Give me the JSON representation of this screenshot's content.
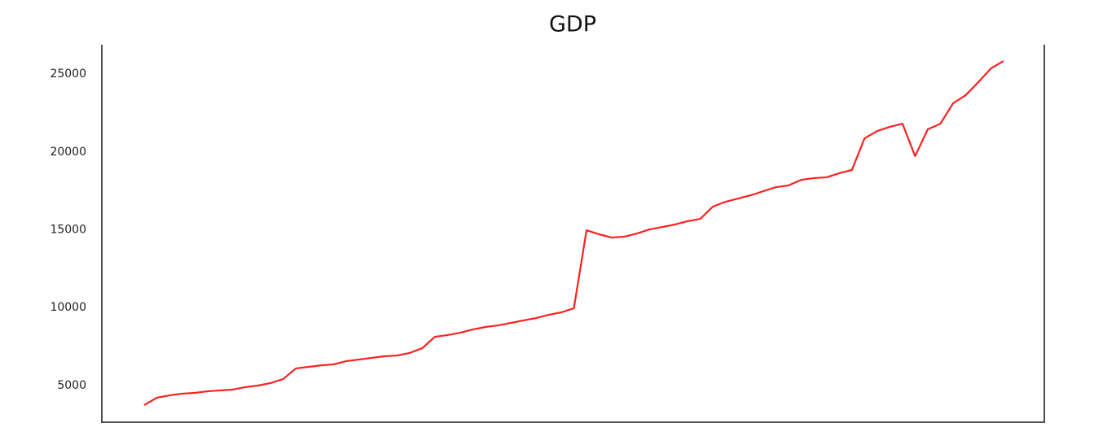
{
  "chart_data": {
    "type": "line",
    "title": "GDP",
    "color": "#ff2020",
    "values": [
      3750,
      4220,
      4370,
      4480,
      4530,
      4630,
      4690,
      4740,
      4900,
      5000,
      5160,
      5420,
      6100,
      6200,
      6300,
      6360,
      6570,
      6670,
      6780,
      6880,
      6930,
      7090,
      7400,
      8130,
      8240,
      8390,
      8600,
      8760,
      8860,
      9020,
      9180,
      9330,
      9540,
      9700,
      9960,
      14970,
      14710,
      14500,
      14560,
      14760,
      15030,
      15180,
      15340,
      15550,
      15700,
      16490,
      16800,
      17010,
      17220,
      17480,
      17740,
      17850,
      18210,
      18320,
      18370,
      18630,
      18840,
      20870,
      21340,
      21610,
      21810,
      19730,
      21450,
      21810,
      23120,
      23640,
      24480,
      25360,
      25830
    ],
    "ylim": [
      2650,
      26880
    ],
    "yticks": [
      5000,
      10000,
      15000,
      20000,
      25000
    ],
    "grid": false
  }
}
